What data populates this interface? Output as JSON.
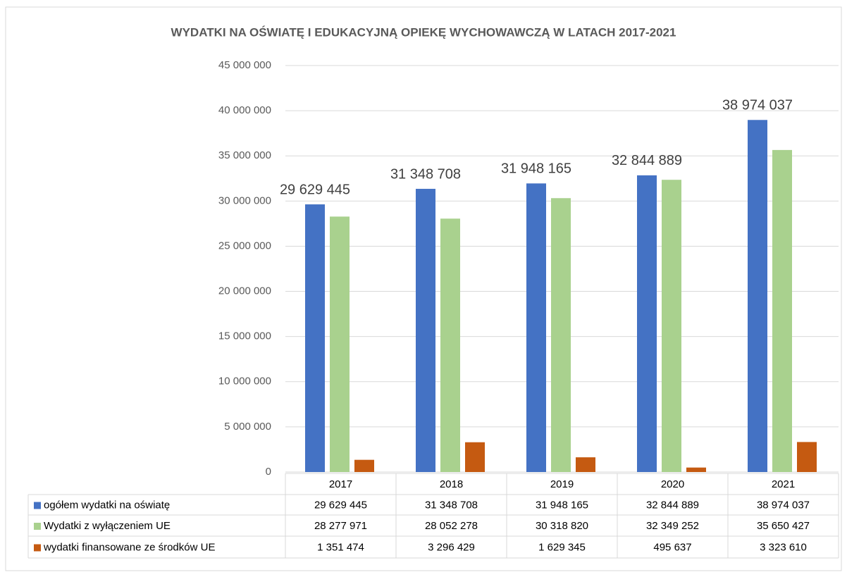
{
  "chart_data": {
    "type": "bar",
    "title": "WYDATKI NA OŚWIATĘ I EDUKACYJNĄ OPIEKĘ WYCHOWAWCZĄ W LATACH 2017-2021",
    "categories": [
      "2017",
      "2018",
      "2019",
      "2020",
      "2021"
    ],
    "series": [
      {
        "name": "ogółem wydatki na oświatę",
        "color": "#4472c4",
        "show_data_labels": true,
        "values": [
          29629445,
          31348708,
          31948165,
          32844889,
          38974037
        ],
        "value_labels": [
          "29 629 445",
          "31 348 708",
          "31 948 165",
          "32 844 889",
          "38 974 037"
        ]
      },
      {
        "name": "Wydatki z wyłączeniem UE",
        "color": "#a9d18e",
        "show_data_labels": false,
        "values": [
          28277971,
          28052278,
          30318820,
          32349252,
          35650427
        ],
        "value_labels": [
          "28 277 971",
          "28 052 278",
          "30 318 820",
          "32 349 252",
          "35 650 427"
        ]
      },
      {
        "name": "wydatki finansowane ze środków UE",
        "color": "#c55a11",
        "show_data_labels": false,
        "values": [
          1351474,
          3296429,
          1629345,
          495637,
          3323610
        ],
        "value_labels": [
          "1 351 474",
          "3 296 429",
          "1 629 345",
          "495 637",
          "3 323 610"
        ]
      }
    ],
    "ylim": [
      0,
      45000000
    ],
    "yticks": [
      0,
      {
        "value": 5000000,
        "label": "5 000 000"
      },
      {
        "value": 10000000,
        "label": "10 000 000"
      },
      {
        "value": 15000000,
        "label": "15 000 000"
      },
      {
        "value": 20000000,
        "label": "20 000 000"
      },
      {
        "value": 25000000,
        "label": "25 000 000"
      },
      {
        "value": 30000000,
        "label": "30 000 000"
      },
      {
        "value": 35000000,
        "label": "35 000 000"
      },
      {
        "value": 40000000,
        "label": "40 000 000"
      },
      {
        "value": 45000000,
        "label": "45 000 000"
      }
    ],
    "grid": true
  }
}
